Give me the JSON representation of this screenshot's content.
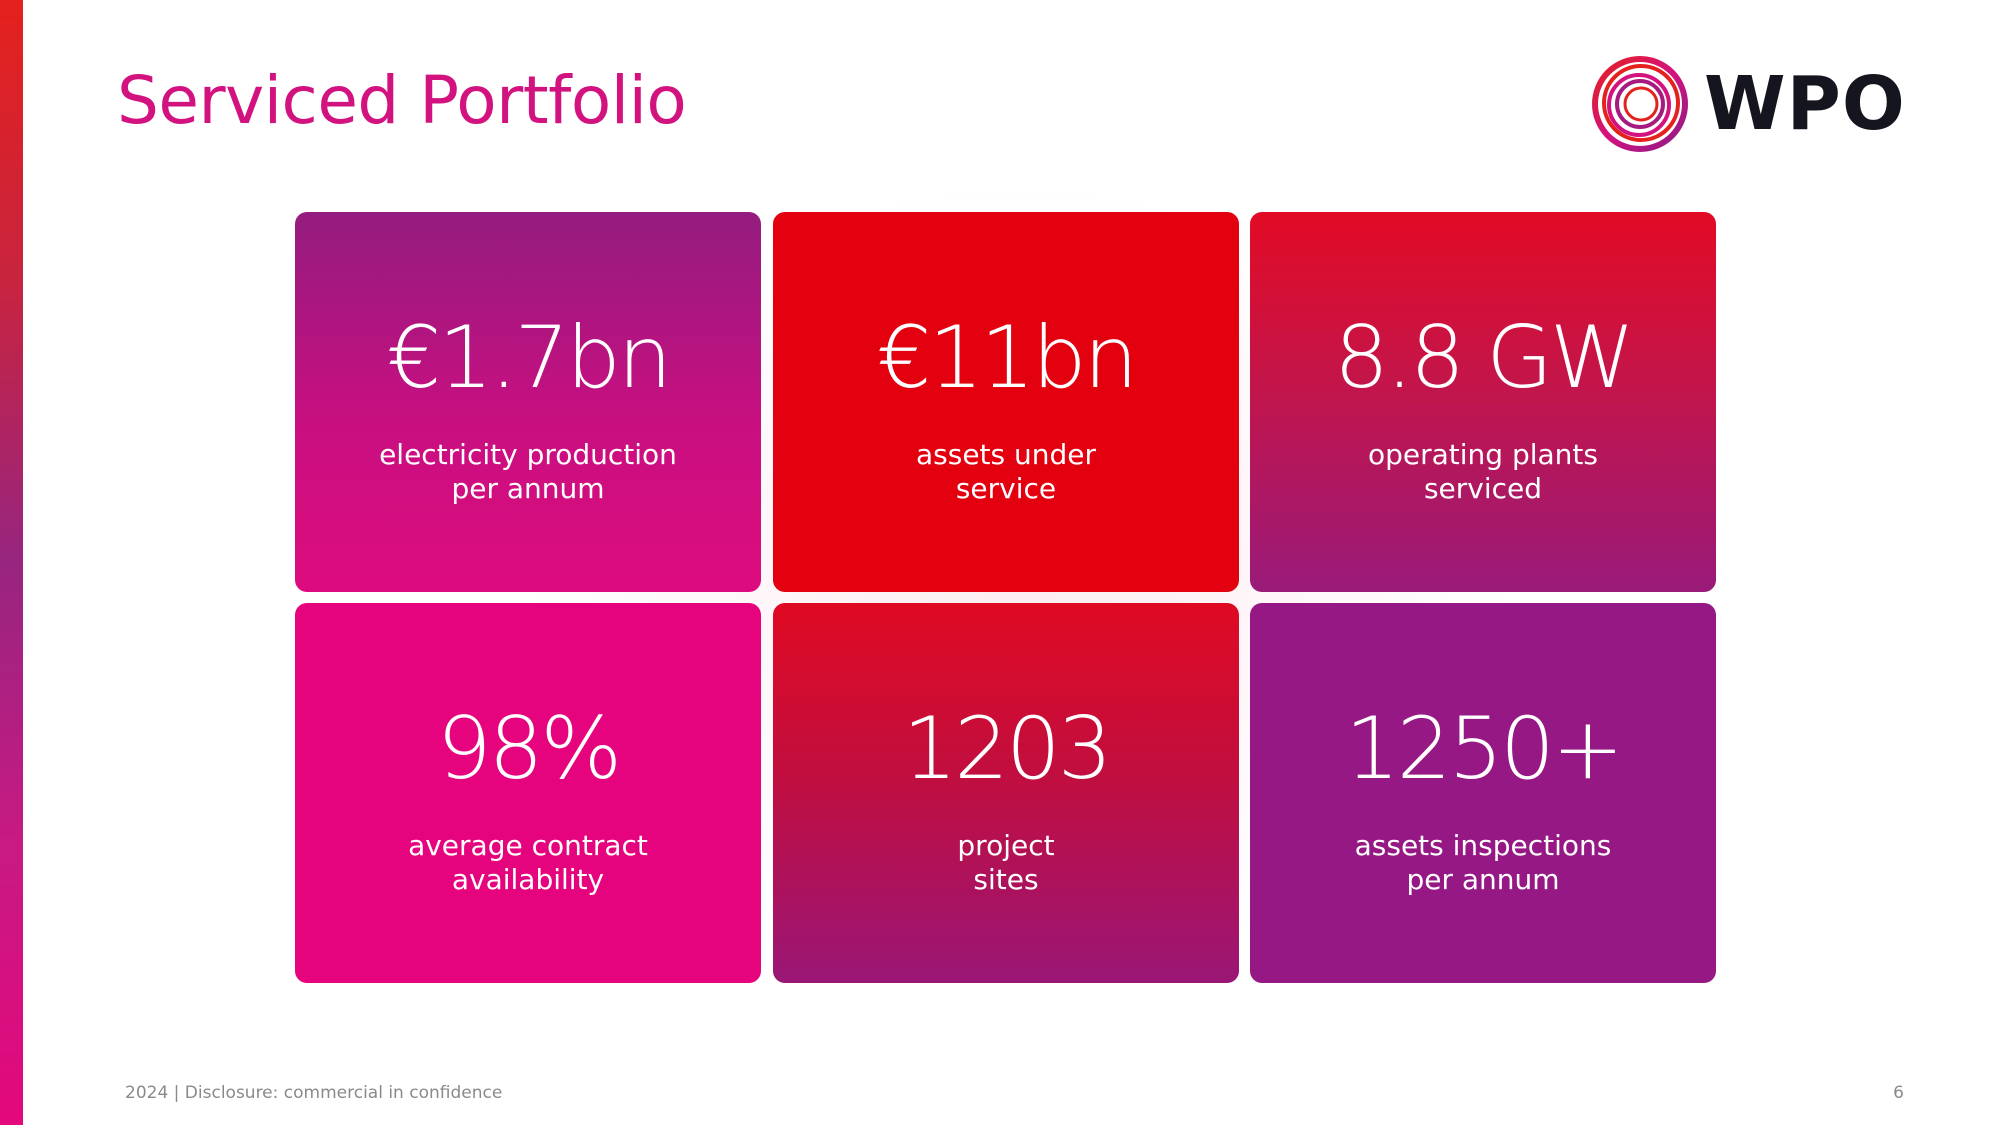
{
  "slide": {
    "title": "Serviced Portfolio",
    "logo_text": "WPO",
    "footer": "2024 | Disclosure: commercial in confidence",
    "page_number": "6"
  },
  "colors": {
    "title": "#d2127f",
    "red": "#e3000f",
    "magenta": "#e5037e",
    "purple": "#961884",
    "logo_text": "#15151f"
  },
  "stats": [
    {
      "value": "€1.7bn",
      "caption": "electricity production\nper annum"
    },
    {
      "value": "€11bn",
      "caption": "assets under\nservice"
    },
    {
      "value": "8.8 GW",
      "caption": "operating plants\nserviced"
    },
    {
      "value": "98%",
      "caption": "average contract\navailability"
    },
    {
      "value": "1203",
      "caption": "project\nsites"
    },
    {
      "value": "1250+",
      "caption": "assets inspections\nper annum"
    }
  ]
}
